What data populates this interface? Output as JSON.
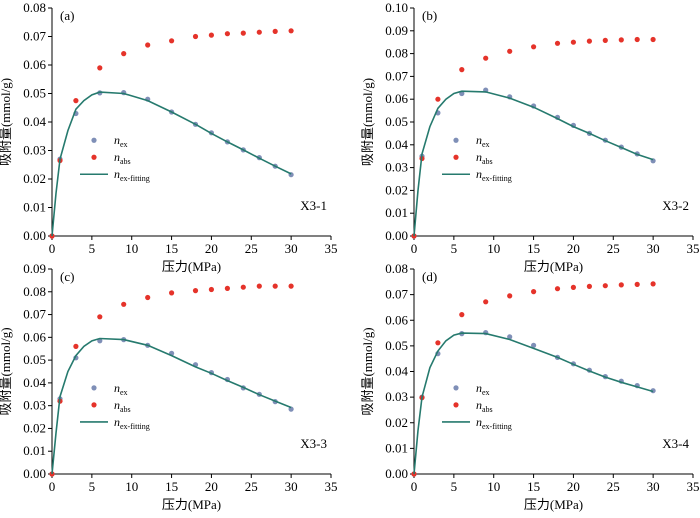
{
  "chart_data": [
    {
      "type": "scatter",
      "panel": "(a)",
      "sample": "X3-1",
      "xlabel": "压力(MPa)",
      "ylabel": "吸附量(mmol/g)",
      "xlim": [
        0,
        35
      ],
      "ylim": [
        0,
        0.08
      ],
      "xticks": [
        "0",
        "5",
        "10",
        "15",
        "20",
        "25",
        "30",
        "35"
      ],
      "yticks": [
        "0.00",
        "0.01",
        "0.02",
        "0.03",
        "0.04",
        "0.05",
        "0.06",
        "0.07",
        "0.08"
      ],
      "legend": [
        {
          "main": "n",
          "sub": "ex"
        },
        {
          "main": "n",
          "sub": "abs"
        },
        {
          "main": "n",
          "sub": "ex-fitting"
        }
      ],
      "series": [
        {
          "key": "ex",
          "x": [
            0,
            1,
            3,
            6,
            9,
            12,
            15,
            18,
            20,
            22,
            24,
            26,
            28,
            30
          ],
          "y": [
            0.0,
            0.027,
            0.043,
            0.0502,
            0.0503,
            0.048,
            0.0435,
            0.0392,
            0.0362,
            0.033,
            0.0302,
            0.0275,
            0.0245,
            0.0215
          ]
        },
        {
          "key": "abs",
          "x": [
            0,
            1,
            3,
            6,
            9,
            12,
            15,
            18,
            20,
            22,
            24,
            26,
            28,
            30
          ],
          "y": [
            0.0,
            0.0265,
            0.0475,
            0.059,
            0.064,
            0.067,
            0.0685,
            0.07,
            0.0705,
            0.071,
            0.0712,
            0.0715,
            0.0718,
            0.072
          ]
        },
        {
          "key": "fit",
          "x": [
            0,
            0.5,
            1,
            2,
            3,
            4,
            5,
            6,
            9,
            12,
            15,
            18,
            20,
            22,
            24,
            26,
            28,
            30
          ],
          "y": [
            0.0,
            0.015,
            0.027,
            0.037,
            0.0445,
            0.0475,
            0.0495,
            0.0505,
            0.05,
            0.0475,
            0.0435,
            0.0392,
            0.036,
            0.033,
            0.0302,
            0.0273,
            0.0245,
            0.0218
          ]
        }
      ]
    },
    {
      "type": "scatter",
      "panel": "(b)",
      "sample": "X3-2",
      "xlabel": "压力(MPa)",
      "ylabel": "吸附量(mmol/g)",
      "xlim": [
        0,
        35
      ],
      "ylim": [
        0,
        0.1
      ],
      "xticks": [
        "0",
        "5",
        "10",
        "15",
        "20",
        "25",
        "30",
        "35"
      ],
      "yticks": [
        "0.00",
        "0.01",
        "0.02",
        "0.03",
        "0.04",
        "0.05",
        "0.06",
        "0.07",
        "0.08",
        "0.09",
        "0.10"
      ],
      "legend": [
        {
          "main": "n",
          "sub": "ex"
        },
        {
          "main": "n",
          "sub": "abs"
        },
        {
          "main": "n",
          "sub": "ex-fitting"
        }
      ],
      "series": [
        {
          "key": "ex",
          "x": [
            0,
            1,
            3,
            6,
            9,
            12,
            15,
            18,
            20,
            22,
            24,
            26,
            28,
            30
          ],
          "y": [
            0.0,
            0.035,
            0.054,
            0.0625,
            0.064,
            0.061,
            0.057,
            0.052,
            0.0485,
            0.045,
            0.042,
            0.039,
            0.036,
            0.033
          ]
        },
        {
          "key": "abs",
          "x": [
            0,
            1,
            3,
            6,
            9,
            12,
            15,
            18,
            20,
            22,
            24,
            26,
            28,
            30
          ],
          "y": [
            0.0,
            0.034,
            0.06,
            0.073,
            0.078,
            0.081,
            0.083,
            0.0845,
            0.085,
            0.0855,
            0.0858,
            0.086,
            0.0862,
            0.0862
          ]
        },
        {
          "key": "fit",
          "x": [
            0,
            0.5,
            1,
            2,
            3,
            4,
            5,
            6,
            9,
            12,
            15,
            18,
            20,
            22,
            24,
            26,
            28,
            30
          ],
          "y": [
            0.0,
            0.02,
            0.036,
            0.048,
            0.056,
            0.06,
            0.0625,
            0.0635,
            0.0632,
            0.0605,
            0.0565,
            0.0515,
            0.048,
            0.045,
            0.0418,
            0.0388,
            0.0358,
            0.0335
          ]
        }
      ]
    },
    {
      "type": "scatter",
      "panel": "(c)",
      "sample": "X3-3",
      "xlabel": "压力(MPa)",
      "ylabel": "吸附量(mmol/g)",
      "xlim": [
        0,
        35
      ],
      "ylim": [
        0,
        0.09
      ],
      "xticks": [
        "0",
        "5",
        "10",
        "15",
        "20",
        "25",
        "30",
        "35"
      ],
      "yticks": [
        "0.00",
        "0.01",
        "0.02",
        "0.03",
        "0.04",
        "0.05",
        "0.06",
        "0.07",
        "0.08",
        "0.09"
      ],
      "legend": [
        {
          "main": "n",
          "sub": "ex"
        },
        {
          "main": "n",
          "sub": "abs"
        },
        {
          "main": "n",
          "sub": "ex-fitting"
        }
      ],
      "series": [
        {
          "key": "ex",
          "x": [
            0,
            1,
            3,
            6,
            9,
            12,
            15,
            18,
            20,
            22,
            24,
            26,
            28,
            30
          ],
          "y": [
            0.0,
            0.033,
            0.051,
            0.0585,
            0.059,
            0.0565,
            0.053,
            0.048,
            0.0445,
            0.0415,
            0.0378,
            0.035,
            0.0318,
            0.0285
          ]
        },
        {
          "key": "abs",
          "x": [
            0,
            1,
            3,
            6,
            9,
            12,
            15,
            18,
            20,
            22,
            24,
            26,
            28,
            30
          ],
          "y": [
            0.0,
            0.032,
            0.056,
            0.069,
            0.0745,
            0.0775,
            0.0795,
            0.0805,
            0.081,
            0.0815,
            0.082,
            0.0825,
            0.0825,
            0.0825
          ]
        },
        {
          "key": "fit",
          "x": [
            0,
            0.5,
            1,
            2,
            3,
            4,
            5,
            6,
            9,
            12,
            15,
            18,
            20,
            22,
            24,
            26,
            28,
            30
          ],
          "y": [
            0.0,
            0.018,
            0.034,
            0.045,
            0.052,
            0.056,
            0.0585,
            0.0595,
            0.059,
            0.0565,
            0.052,
            0.047,
            0.0442,
            0.041,
            0.038,
            0.0348,
            0.032,
            0.0292
          ]
        }
      ]
    },
    {
      "type": "scatter",
      "panel": "(d)",
      "sample": "X3-4",
      "xlabel": "压力(MPa)",
      "ylabel": "吸附量(mmol/g)",
      "xlim": [
        0,
        35
      ],
      "ylim": [
        0,
        0.08
      ],
      "xticks": [
        "0",
        "5",
        "10",
        "15",
        "20",
        "25",
        "30",
        "35"
      ],
      "yticks": [
        "0.00",
        "0.01",
        "0.02",
        "0.03",
        "0.04",
        "0.05",
        "0.06",
        "0.07",
        "0.08"
      ],
      "legend": [
        {
          "main": "n",
          "sub": "ex"
        },
        {
          "main": "n",
          "sub": "abs"
        },
        {
          "main": "n",
          "sub": "ex-fitting"
        }
      ],
      "series": [
        {
          "key": "ex",
          "x": [
            0,
            1,
            3,
            6,
            9,
            12,
            15,
            18,
            20,
            22,
            24,
            26,
            28,
            30
          ],
          "y": [
            0.0,
            0.03,
            0.047,
            0.0548,
            0.0552,
            0.0535,
            0.0502,
            0.0455,
            0.043,
            0.0405,
            0.038,
            0.0362,
            0.0345,
            0.0325
          ]
        },
        {
          "key": "abs",
          "x": [
            0,
            1,
            3,
            6,
            9,
            12,
            15,
            18,
            20,
            22,
            24,
            26,
            28,
            30
          ],
          "y": [
            0.0,
            0.0298,
            0.0512,
            0.0622,
            0.0672,
            0.0695,
            0.0712,
            0.0723,
            0.0728,
            0.0732,
            0.0735,
            0.0738,
            0.074,
            0.0742
          ]
        },
        {
          "key": "fit",
          "x": [
            0,
            0.5,
            1,
            2,
            3,
            4,
            5,
            6,
            9,
            12,
            15,
            18,
            20,
            22,
            24,
            26,
            28,
            30
          ],
          "y": [
            0.0,
            0.017,
            0.03,
            0.0415,
            0.048,
            0.052,
            0.0542,
            0.055,
            0.0548,
            0.0525,
            0.049,
            0.0455,
            0.0428,
            0.0402,
            0.0378,
            0.0358,
            0.034,
            0.0322
          ]
        }
      ]
    }
  ],
  "colors": {
    "ex_marker": "#7f8fb7",
    "abs_marker": "#e5332a",
    "fit_line": "#267a6e",
    "axis": "#000000"
  }
}
